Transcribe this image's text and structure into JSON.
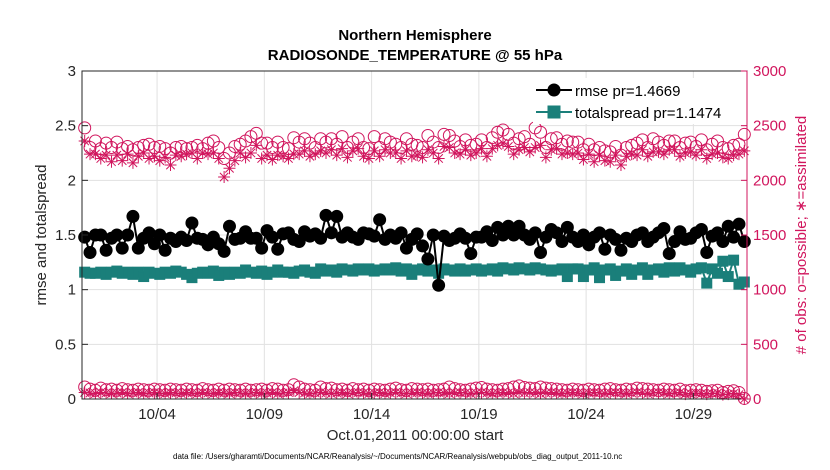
{
  "chart_data": {
    "type": "line",
    "title": "Northern Hemisphere",
    "subtitle": "RADIOSONDE_TEMPERATURE @ 55 hPa",
    "xlabel": "Oct.01,2011 00:00:00 start",
    "ylabel_left": "rmse and totalspread",
    "ylabel_right": "# of obs: o=possible; ∗=assimilated",
    "x_ticks": [
      "10/04",
      "10/09",
      "10/14",
      "10/19",
      "10/24",
      "10/29"
    ],
    "y_left_ticks": [
      "0",
      "0.5",
      "1",
      "1.5",
      "2",
      "2.5",
      "3"
    ],
    "y_right_ticks": [
      "0",
      "500",
      "1000",
      "1500",
      "2000",
      "2500",
      "3000"
    ],
    "ylim_left": [
      0,
      3
    ],
    "ylim_right": [
      0,
      3000
    ],
    "n_points": 124,
    "legend": [
      {
        "label": "rmse pr=1.4669",
        "color": "#000000"
      },
      {
        "label": "totalspread pr=1.1474",
        "color": "#1a7f7a"
      }
    ],
    "series": [
      {
        "name": "rmse",
        "axis": "left",
        "color": "#000000",
        "marker": "filled-circle",
        "values": [
          1.48,
          1.34,
          1.5,
          1.5,
          1.36,
          1.47,
          1.5,
          1.38,
          1.5,
          1.67,
          1.38,
          1.47,
          1.52,
          1.42,
          1.5,
          1.36,
          1.47,
          1.44,
          1.48,
          1.45,
          1.61,
          1.47,
          1.46,
          1.41,
          1.48,
          1.42,
          1.35,
          1.58,
          1.46,
          1.47,
          1.53,
          1.47,
          1.47,
          1.38,
          1.54,
          1.48,
          1.37,
          1.51,
          1.52,
          1.46,
          1.44,
          1.53,
          1.49,
          1.51,
          1.47,
          1.68,
          1.52,
          1.67,
          1.48,
          1.52,
          1.48,
          1.46,
          1.52,
          1.51,
          1.49,
          1.64,
          1.46,
          1.5,
          1.47,
          1.52,
          1.38,
          1.46,
          1.51,
          1.4,
          1.28,
          1.5,
          1.04,
          1.49,
          1.45,
          1.47,
          1.51,
          1.47,
          1.33,
          1.48,
          1.48,
          1.53,
          1.45,
          1.57,
          1.5,
          1.58,
          1.5,
          1.58,
          1.5,
          1.46,
          1.52,
          1.34,
          1.48,
          1.55,
          1.52,
          1.44,
          1.57,
          1.48,
          1.44,
          1.5,
          1.41,
          1.48,
          1.52,
          1.37,
          1.5,
          1.46,
          1.36,
          1.47,
          1.44,
          1.5,
          1.52,
          1.44,
          1.48,
          1.52,
          1.56,
          1.33,
          1.44,
          1.53,
          1.46,
          1.47,
          1.52,
          1.55,
          1.34,
          1.49,
          1.52,
          1.44,
          1.58,
          1.48,
          1.6,
          1.44
        ]
      },
      {
        "name": "totalspread",
        "axis": "left",
        "color": "#1a7f7a",
        "marker": "filled-square",
        "values": [
          1.16,
          1.15,
          1.15,
          1.16,
          1.14,
          1.16,
          1.17,
          1.15,
          1.16,
          1.14,
          1.16,
          1.12,
          1.16,
          1.15,
          1.14,
          1.16,
          1.15,
          1.17,
          1.16,
          1.14,
          1.11,
          1.15,
          1.16,
          1.15,
          1.17,
          1.13,
          1.16,
          1.14,
          1.16,
          1.15,
          1.18,
          1.16,
          1.15,
          1.17,
          1.14,
          1.16,
          1.18,
          1.16,
          1.16,
          1.15,
          1.17,
          1.18,
          1.16,
          1.15,
          1.19,
          1.17,
          1.18,
          1.16,
          1.19,
          1.18,
          1.17,
          1.19,
          1.18,
          1.19,
          1.17,
          1.18,
          1.19,
          1.18,
          1.2,
          1.17,
          1.19,
          1.14,
          1.18,
          1.19,
          1.17,
          1.18,
          1.15,
          1.19,
          1.18,
          1.17,
          1.19,
          1.17,
          1.18,
          1.19,
          1.17,
          1.18,
          1.19,
          1.17,
          1.2,
          1.19,
          1.18,
          1.2,
          1.19,
          1.18,
          1.2,
          1.19,
          1.18,
          1.17,
          1.18,
          1.19,
          1.12,
          1.19,
          1.19,
          1.12,
          1.18,
          1.2,
          1.11,
          1.18,
          1.19,
          1.13,
          1.17,
          1.19,
          1.14,
          1.18,
          1.2,
          1.14,
          1.18,
          1.19,
          1.16,
          1.2,
          1.17,
          1.2,
          1.18,
          1.16,
          1.19,
          1.2,
          1.06,
          1.19,
          1.15,
          1.26,
          1.12,
          1.27,
          1.05,
          1.07
        ]
      },
      {
        "name": "obs possible",
        "axis": "right",
        "color": "#d1155d",
        "marker": "open-circle",
        "values": [
          2480,
          2300,
          2360,
          2290,
          2340,
          2300,
          2350,
          2290,
          2310,
          2280,
          2300,
          2320,
          2330,
          2300,
          2310,
          2290,
          2250,
          2300,
          2310,
          2290,
          2300,
          2320,
          2290,
          2340,
          2360,
          2300,
          2200,
          2250,
          2310,
          2330,
          2360,
          2400,
          2430,
          2340,
          2340,
          2300,
          2350,
          2300,
          2290,
          2390,
          2350,
          2380,
          2340,
          2300,
          2380,
          2350,
          2380,
          2330,
          2400,
          2300,
          2350,
          2380,
          2300,
          2290,
          2400,
          2300,
          2380,
          2350,
          2330,
          2300,
          2380,
          2330,
          2320,
          2300,
          2410,
          2350,
          2300,
          2420,
          2410,
          2360,
          2310,
          2370,
          2320,
          2330,
          2370,
          2300,
          2390,
          2440,
          2460,
          2420,
          2340,
          2380,
          2400,
          2330,
          2480,
          2440,
          2300,
          2380,
          2390,
          2330,
          2360,
          2350,
          2350,
          2280,
          2330,
          2280,
          2300,
          2270,
          2260,
          2310,
          2230,
          2300,
          2320,
          2340,
          2370,
          2300,
          2380,
          2350,
          2320,
          2360,
          2360,
          2300,
          2340,
          2350,
          2310,
          2370,
          2280,
          2330,
          2360,
          2300,
          2290,
          2320,
          2330,
          2420
        ]
      },
      {
        "name": "obs assimilated",
        "axis": "right",
        "color": "#d1155d",
        "marker": "asterisk",
        "values": [
          2360,
          2240,
          2240,
          2200,
          2230,
          2170,
          2230,
          2180,
          2240,
          2160,
          2220,
          2250,
          2200,
          2220,
          2180,
          2210,
          2140,
          2230,
          2220,
          2240,
          2250,
          2200,
          2250,
          2240,
          2250,
          2200,
          2030,
          2110,
          2180,
          2250,
          2210,
          2250,
          2320,
          2200,
          2230,
          2190,
          2230,
          2220,
          2200,
          2240,
          2240,
          2270,
          2220,
          2240,
          2270,
          2250,
          2280,
          2230,
          2290,
          2210,
          2270,
          2290,
          2220,
          2200,
          2270,
          2220,
          2280,
          2250,
          2250,
          2200,
          2270,
          2220,
          2230,
          2210,
          2280,
          2250,
          2200,
          2310,
          2300,
          2250,
          2240,
          2280,
          2230,
          2250,
          2290,
          2220,
          2290,
          2320,
          2340,
          2310,
          2240,
          2280,
          2300,
          2260,
          2300,
          2320,
          2210,
          2280,
          2290,
          2240,
          2250,
          2240,
          2250,
          2190,
          2240,
          2170,
          2230,
          2180,
          2170,
          2230,
          2140,
          2220,
          2240,
          2230,
          2280,
          2220,
          2260,
          2260,
          2240,
          2280,
          2280,
          2220,
          2250,
          2260,
          2230,
          2280,
          2200,
          2240,
          2250,
          2210,
          2200,
          2230,
          2240,
          2270
        ]
      },
      {
        "name": "rejected possible",
        "axis": "right",
        "color": "#d1155d",
        "marker": "open-circle",
        "values": [
          110,
          90,
          80,
          100,
          85,
          90,
          80,
          95,
          85,
          80,
          90,
          85,
          80,
          90,
          85,
          80,
          90,
          85,
          80,
          90,
          85,
          80,
          95,
          85,
          80,
          90,
          80,
          90,
          85,
          80,
          90,
          80,
          85,
          90,
          80,
          95,
          90,
          80,
          85,
          130,
          110,
          90,
          85,
          80,
          110,
          95,
          100,
          85,
          90,
          80,
          95,
          85,
          90,
          80,
          90,
          85,
          80,
          90,
          100,
          85,
          80,
          95,
          90,
          85,
          90,
          80,
          85,
          90,
          110,
          95,
          85,
          80,
          90,
          100,
          105,
          90,
          85,
          80,
          90,
          95,
          110,
          120,
          105,
          100,
          95,
          110,
          100,
          95,
          90,
          85,
          80,
          90,
          85,
          80,
          90,
          85,
          80,
          90,
          95,
          85,
          80,
          90,
          85,
          100,
          95,
          90,
          85,
          80,
          90,
          85,
          80,
          90,
          75,
          80,
          85,
          80,
          70,
          75,
          80,
          60,
          70,
          75,
          60,
          5
        ]
      },
      {
        "name": "rejected assimilated",
        "axis": "right",
        "color": "#d1155d",
        "marker": "asterisk",
        "values": [
          60,
          55,
          50,
          60,
          55,
          50,
          55,
          60,
          50,
          55,
          60,
          50,
          55,
          60,
          55,
          50,
          60,
          55,
          50,
          60,
          55,
          50,
          60,
          55,
          50,
          60,
          55,
          50,
          60,
          55,
          50,
          55,
          60,
          50,
          55,
          60,
          50,
          55,
          60,
          75,
          60,
          55,
          50,
          55,
          60,
          55,
          50,
          55,
          60,
          50,
          55,
          60,
          55,
          50,
          55,
          60,
          50,
          55,
          60,
          55,
          50,
          55,
          60,
          55,
          50,
          55,
          60,
          55,
          50,
          55,
          60,
          55,
          50,
          55,
          60,
          55,
          50,
          55,
          60,
          55,
          50,
          60,
          55,
          60,
          55,
          50,
          55,
          60,
          55,
          50,
          55,
          60,
          55,
          50,
          55,
          60,
          55,
          50,
          55,
          60,
          55,
          50,
          55,
          60,
          55,
          50,
          55,
          60,
          55,
          50,
          55,
          60,
          45,
          50,
          55,
          50,
          45,
          50,
          55,
          40,
          45,
          50,
          40,
          0
        ]
      }
    ]
  },
  "footer": "data file: /Users/gharamti/Documents/NCAR/Reanalysis/~/Documents/NCAR/Reanalysis/webpub/obs_diag_output_2011-10.nc"
}
